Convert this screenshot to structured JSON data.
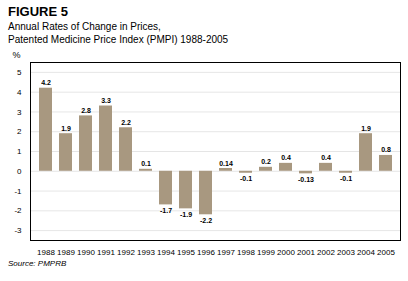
{
  "chart_data": {
    "type": "bar",
    "title": "FIGURE 5",
    "subtitle": [
      "Annual Rates of Change in Prices,",
      "Patented Medicine Price Index (PMPI) 1988-2005"
    ],
    "source": "Source: PMPRB",
    "ylabel": "%",
    "categories": [
      "1988",
      "1989",
      "1990",
      "1991",
      "1992",
      "1993",
      "1994",
      "1995",
      "1996",
      "1997",
      "1998",
      "1999",
      "2000",
      "2001",
      "2002",
      "2003",
      "2004",
      "2005"
    ],
    "values": [
      4.2,
      1.9,
      2.8,
      3.3,
      2.2,
      0.1,
      -1.7,
      -1.9,
      -2.2,
      0.14,
      -0.1,
      0.2,
      0.4,
      -0.13,
      0.4,
      -0.1,
      1.9,
      0.8
    ],
    "color": "#a89880",
    "ylim": [
      -3.5,
      5.5
    ],
    "yticks": [
      -3,
      -2,
      -1,
      0,
      1,
      2,
      3,
      4,
      5
    ],
    "grid": true,
    "data_labels": true
  }
}
